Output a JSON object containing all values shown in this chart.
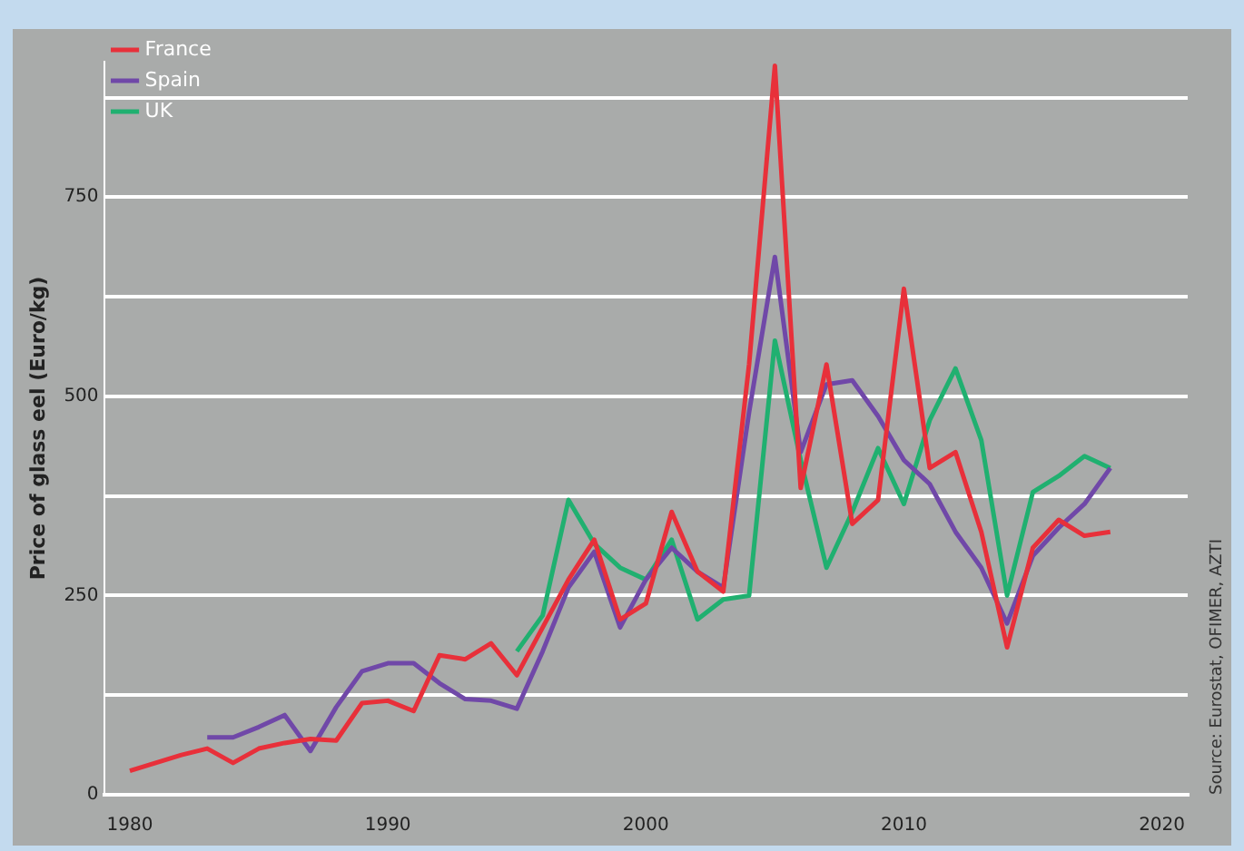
{
  "chart_data": {
    "type": "line",
    "ylabel": "Price of glass eel (Euro/kg)",
    "annotations": [
      "Source: Eurostat, OFIMER, AZTI"
    ],
    "xlim": [
      1979,
      2021
    ],
    "xticks": [
      1980,
      1990,
      2000,
      2010,
      2020
    ],
    "ylim": [
      0,
      920
    ],
    "yticks": [
      0,
      {
        "value": 125,
        "label": null
      },
      250,
      {
        "value": 375,
        "label": null
      },
      500,
      {
        "value": 625,
        "label": null
      },
      750,
      {
        "value": 875,
        "label": null
      }
    ],
    "grid": "y",
    "legend": "top left",
    "marker": "none",
    "line_style": "solid",
    "series": [
      {
        "name": "France",
        "color": "#e8303a",
        "x": [
          1980,
          1981,
          1982,
          1983,
          1984,
          1985,
          1986,
          1987,
          1988,
          1989,
          1990,
          1991,
          1992,
          1993,
          1994,
          1995,
          1996,
          1997,
          1998,
          1999,
          2000,
          2001,
          2002,
          2003,
          2004,
          2005,
          2006,
          2007,
          2008,
          2009,
          2010,
          2011,
          2012,
          2013,
          2014,
          2015,
          2016,
          2017,
          2018
        ],
        "values": [
          30,
          40,
          50,
          58,
          40,
          58,
          65,
          70,
          68,
          115,
          118,
          105,
          175,
          170,
          190,
          150,
          210,
          270,
          320,
          220,
          240,
          355,
          280,
          255,
          540,
          915,
          385,
          540,
          340,
          370,
          635,
          410,
          430,
          330,
          185,
          310,
          345,
          325,
          330
        ]
      },
      {
        "name": "Spain",
        "color": "#7048a8",
        "x": [
          1983,
          1984,
          1985,
          1986,
          1987,
          1988,
          1989,
          1990,
          1991,
          1992,
          1993,
          1994,
          1995,
          1996,
          1997,
          1998,
          1999,
          2000,
          2001,
          2002,
          2003,
          2004,
          2005,
          2006,
          2007,
          2008,
          2009,
          2010,
          2011,
          2012,
          2013,
          2014,
          2015,
          2016,
          2017,
          2018
        ],
        "values": [
          72,
          72,
          85,
          100,
          55,
          110,
          155,
          165,
          165,
          140,
          120,
          118,
          108,
          180,
          260,
          305,
          210,
          270,
          310,
          280,
          260,
          480,
          675,
          430,
          515,
          520,
          475,
          420,
          390,
          330,
          285,
          215,
          300,
          335,
          365,
          410
        ]
      },
      {
        "name": "UK",
        "color": "#20b070",
        "x": [
          1995,
          1996,
          1997,
          1998,
          1999,
          2000,
          2001,
          2002,
          2003,
          2004,
          2005,
          2006,
          2007,
          2008,
          2009,
          2010,
          2011,
          2012,
          2013,
          2014,
          2015,
          2016,
          2017,
          2018
        ],
        "values": [
          180,
          225,
          370,
          315,
          285,
          270,
          320,
          220,
          245,
          250,
          570,
          420,
          285,
          355,
          435,
          365,
          470,
          535,
          445,
          250,
          380,
          400,
          425,
          410
        ]
      }
    ]
  }
}
